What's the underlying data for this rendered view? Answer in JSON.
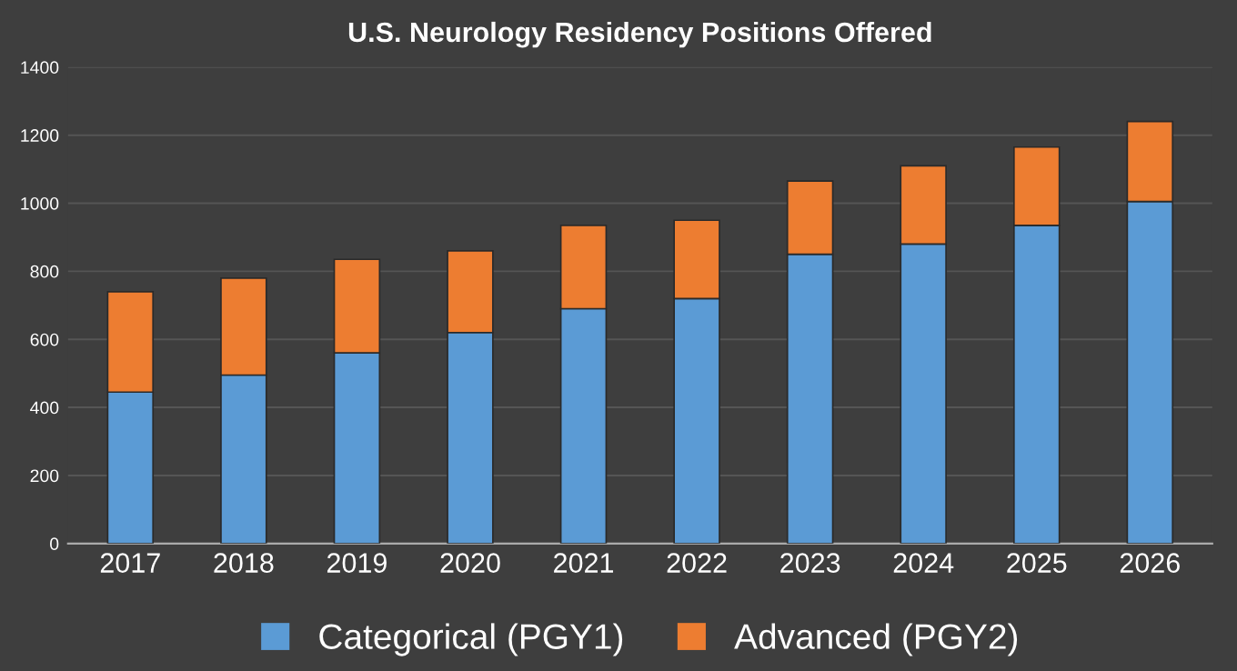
{
  "chart_data": {
    "type": "bar",
    "title": "U.S. Neurology Residency Positions Offered",
    "stacked": true,
    "categories": [
      "2017",
      "2018",
      "2019",
      "2020",
      "2021",
      "2022",
      "2023",
      "2024",
      "2025",
      "2026"
    ],
    "series": [
      {
        "name": "Categorical (PGY1)",
        "color": "#5b9bd5",
        "values": [
          445,
          495,
          560,
          620,
          690,
          720,
          850,
          880,
          935,
          1005
        ]
      },
      {
        "name": "Advanced (PGY2)",
        "color": "#ed7d31",
        "values": [
          295,
          285,
          275,
          240,
          245,
          230,
          215,
          230,
          230,
          235
        ]
      }
    ],
    "ylim": [
      0,
      1400
    ],
    "yticks": [
      0,
      200,
      400,
      600,
      800,
      1000,
      1200,
      1400
    ],
    "grid": "y",
    "legend": "bottom"
  }
}
